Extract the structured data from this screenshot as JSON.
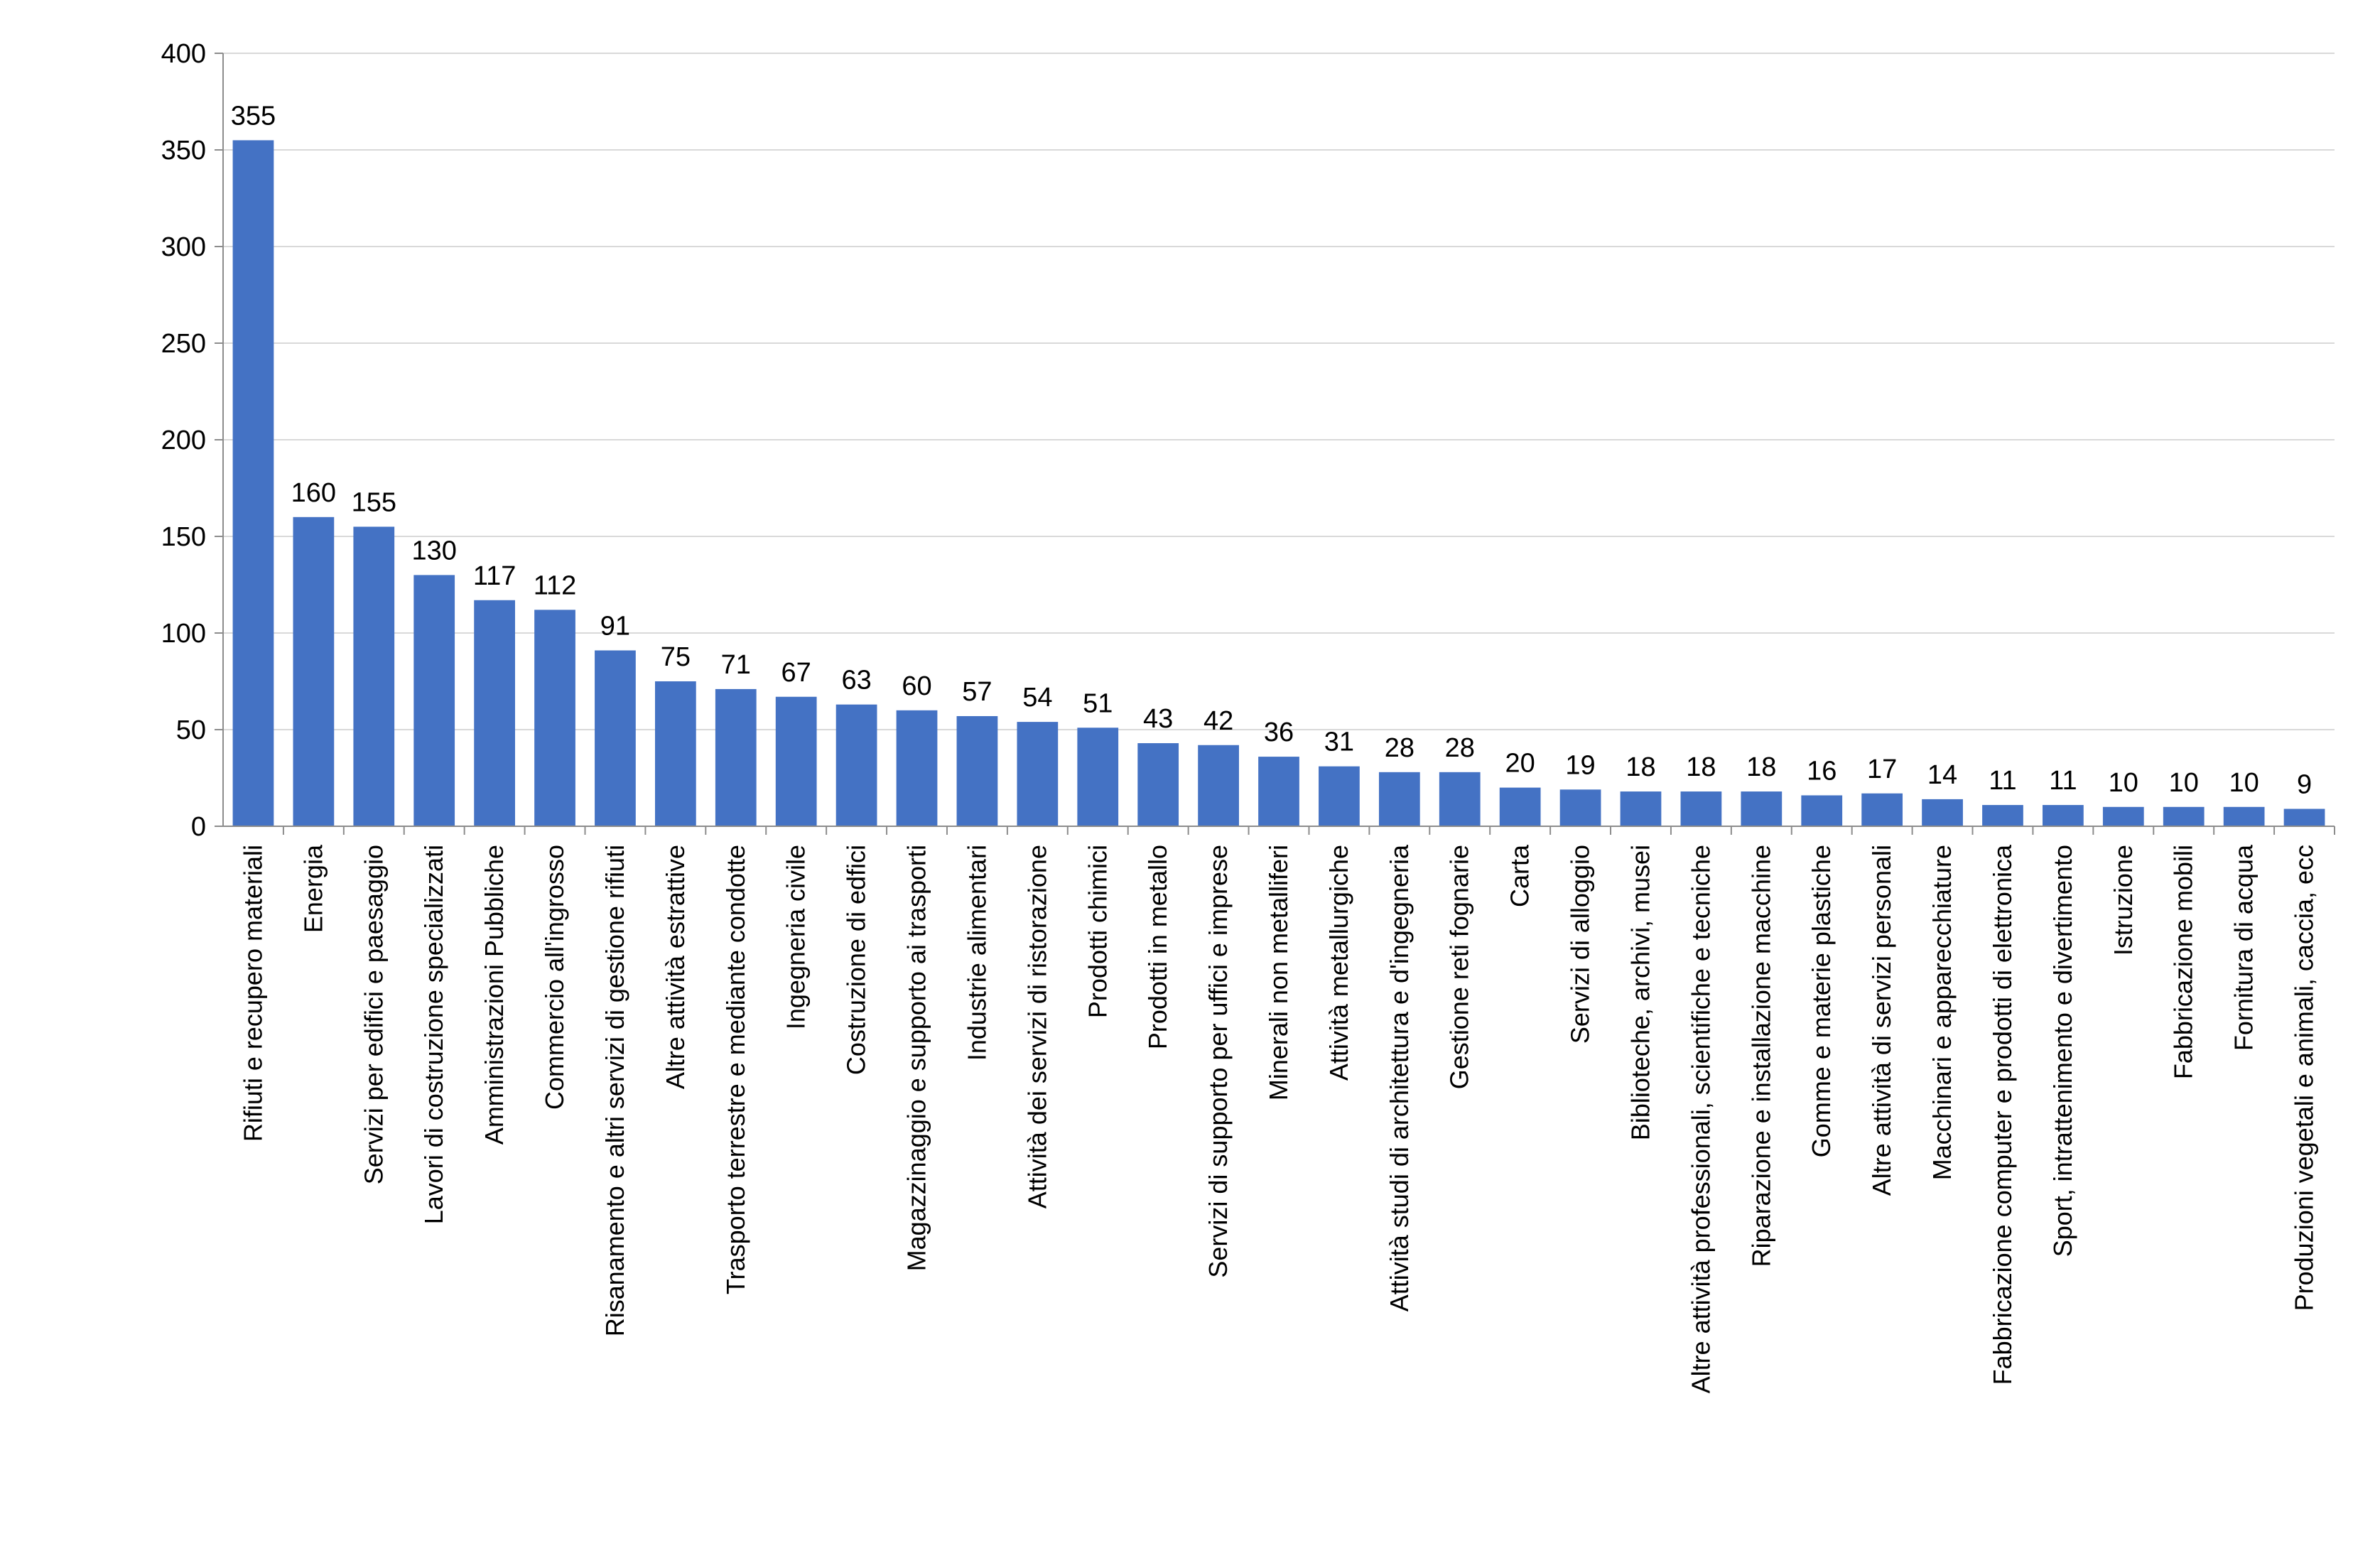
{
  "chart_data": {
    "type": "bar",
    "title": "",
    "xlabel": "",
    "ylabel": "",
    "ylim": [
      0,
      400
    ],
    "yticks": [
      0,
      50,
      100,
      150,
      200,
      250,
      300,
      350,
      400
    ],
    "grid": true,
    "legend": "none",
    "bar_color": "#4472C4",
    "categories": [
      "Rifiuti e recupero materiali",
      "Energia",
      "Servizi per edifici e paesaggio",
      "Lavori di costruzione specializzati",
      "Amministrazioni Pubbliche",
      "Commercio all'ingrosso",
      "Risanamento e altri servizi di gestione rifiuti",
      "Altre attività estrattive",
      "Trasporto terrestre e mediante condotte",
      "Ingegneria civile",
      "Costruzione di edfici",
      "Magazzinaggio e supporto ai trasporti",
      "Industrie alimentari",
      "Attività dei servizi di ristorazione",
      "Prodotti chimici",
      "Prodotti in metallo",
      "Servizi di supporto per uffici e imprese",
      "Minerali non metalliferi",
      "Attività metallurgiche",
      "Attività studi di architettura e d'ingegneria",
      "Gestione reti fognarie",
      "Carta",
      "Servizi di alloggio",
      "Biblioteche, archivi, musei",
      "Altre attività professionali, scientifiche e tecniche",
      "Riparazione e installazione macchine",
      "Gomme e materie plastiche",
      "Altre attività di servizi personali",
      "Macchinari e apparecchiature",
      "Fabbricazione computer e prodotti di elettronica",
      "Sport, intrattenimento e divertimento",
      "Istruzione",
      "Fabbricazione mobili",
      "Fornitura di acqua",
      "Produzioni vegetali e animali, caccia, ecc"
    ],
    "values": [
      355,
      160,
      155,
      130,
      117,
      112,
      91,
      75,
      71,
      67,
      63,
      60,
      57,
      54,
      51,
      43,
      42,
      36,
      31,
      28,
      28,
      20,
      19,
      18,
      18,
      18,
      16,
      17,
      14,
      11,
      11,
      10,
      10,
      10,
      9
    ]
  }
}
